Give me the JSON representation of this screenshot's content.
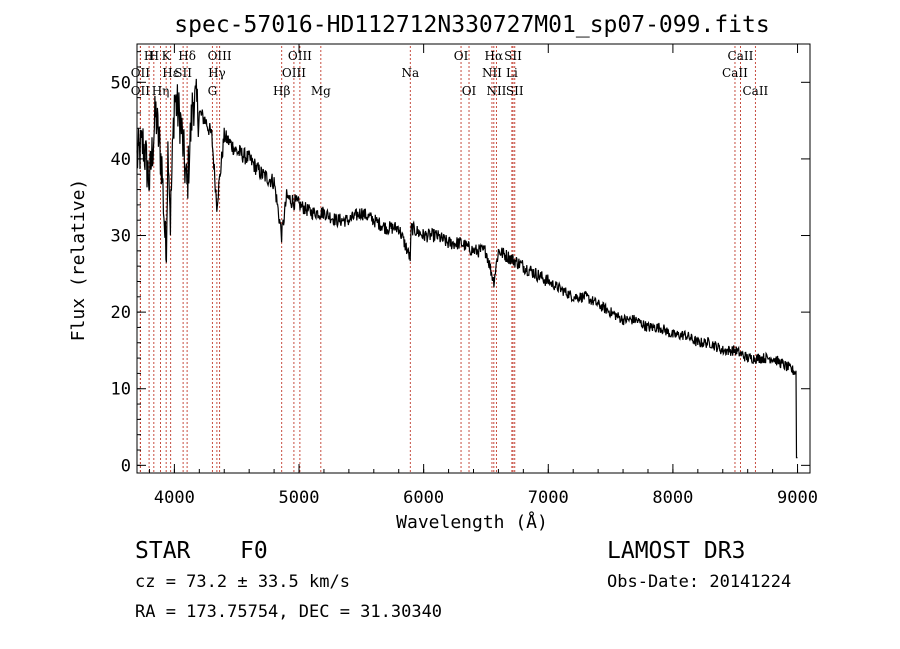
{
  "chart_data": {
    "type": "line",
    "title": "spec-57016-HD112712N330727M01_sp07-099.fits",
    "xlabel": "Wavelength (Å)",
    "ylabel": "Flux (relative)",
    "xlim": [
      3700,
      9100
    ],
    "ylim": [
      -1,
      55
    ],
    "xticks": [
      4000,
      5000,
      6000,
      7000,
      8000,
      9000
    ],
    "yticks": [
      0,
      10,
      20,
      30,
      40,
      50
    ],
    "grid": false,
    "series": [
      {
        "name": "flux",
        "x": [
          3700,
          3750,
          3800,
          3850,
          3900,
          3933,
          3950,
          3968,
          4000,
          4050,
          4101,
          4150,
          4200,
          4250,
          4300,
          4340,
          4400,
          4500,
          4600,
          4700,
          4800,
          4861,
          4900,
          5000,
          5100,
          5200,
          5300,
          5400,
          5500,
          5600,
          5700,
          5800,
          5893,
          5900,
          6000,
          6100,
          6200,
          6300,
          6400,
          6500,
          6563,
          6600,
          6700,
          6800,
          6900,
          7000,
          7100,
          7200,
          7300,
          7400,
          7500,
          7600,
          7700,
          7800,
          7900,
          8000,
          8100,
          8200,
          8300,
          8400,
          8500,
          8600,
          8700,
          8800,
          8900,
          9000
        ],
        "y": [
          40,
          42,
          37,
          46,
          39,
          27,
          43,
          32,
          48,
          45,
          36,
          48,
          46,
          45,
          43,
          34,
          43,
          41,
          40,
          38,
          37,
          30,
          35,
          34,
          33,
          33,
          32,
          32,
          33,
          32,
          31,
          31,
          27,
          31,
          30,
          30,
          29,
          29,
          28,
          28,
          24,
          28,
          27,
          26,
          25,
          24,
          23,
          22,
          22,
          21,
          20,
          19,
          19,
          18,
          18,
          17,
          17,
          16,
          16,
          15,
          15,
          14,
          14,
          14,
          13,
          12
        ]
      }
    ],
    "lines": [
      {
        "label": "OII",
        "x": 3727,
        "row": 1
      },
      {
        "label": "OII",
        "x": 3727,
        "row": 2
      },
      {
        "label": "H",
        "x": 3797,
        "row": 0
      },
      {
        "label": "H",
        "x": 3835,
        "row": 0
      },
      {
        "label": "K",
        "x": 3934,
        "row": 0
      },
      {
        "label": "Hε",
        "x": 3970,
        "row": 1
      },
      {
        "label": "Hη",
        "x": 3889,
        "row": 2
      },
      {
        "label": "Hδ",
        "x": 4102,
        "row": 0
      },
      {
        "label": "SII",
        "x": 4070,
        "row": 1
      },
      {
        "label": "OIII",
        "x": 4363,
        "row": 0
      },
      {
        "label": "Hγ",
        "x": 4341,
        "row": 1
      },
      {
        "label": "G",
        "x": 4305,
        "row": 2
      },
      {
        "label": "Hβ",
        "x": 4861,
        "row": 2
      },
      {
        "label": "OIII",
        "x": 4959,
        "row": 1
      },
      {
        "label": "OIII",
        "x": 5007,
        "row": 0
      },
      {
        "label": "Mg",
        "x": 5175,
        "row": 2
      },
      {
        "label": "Na",
        "x": 5893,
        "row": 1
      },
      {
        "label": "OI",
        "x": 6300,
        "row": 0
      },
      {
        "label": "OI",
        "x": 6364,
        "row": 2
      },
      {
        "label": "Hα",
        "x": 6563,
        "row": 0
      },
      {
        "label": "NII",
        "x": 6548,
        "row": 1
      },
      {
        "label": "NII",
        "x": 6584,
        "row": 2
      },
      {
        "label": "SII",
        "x": 6717,
        "row": 0
      },
      {
        "label": "Li",
        "x": 6708,
        "row": 1
      },
      {
        "label": "SII",
        "x": 6731,
        "row": 2
      },
      {
        "label": "CaII",
        "x": 8542,
        "row": 0
      },
      {
        "label": "CaII",
        "x": 8498,
        "row": 1
      },
      {
        "label": "CaII",
        "x": 8662,
        "row": 2
      }
    ]
  },
  "info": {
    "object_class": "STAR",
    "subclass": "F0",
    "survey": "LAMOST DR3",
    "cz": "cz = 73.2 ± 33.5 km/s",
    "obs_date": "Obs-Date: 20141224",
    "coords": "RA = 173.75754, DEC =  31.30340"
  },
  "colors": {
    "line": "#000000",
    "marker": "#c0392b",
    "background": "#ffffff"
  }
}
